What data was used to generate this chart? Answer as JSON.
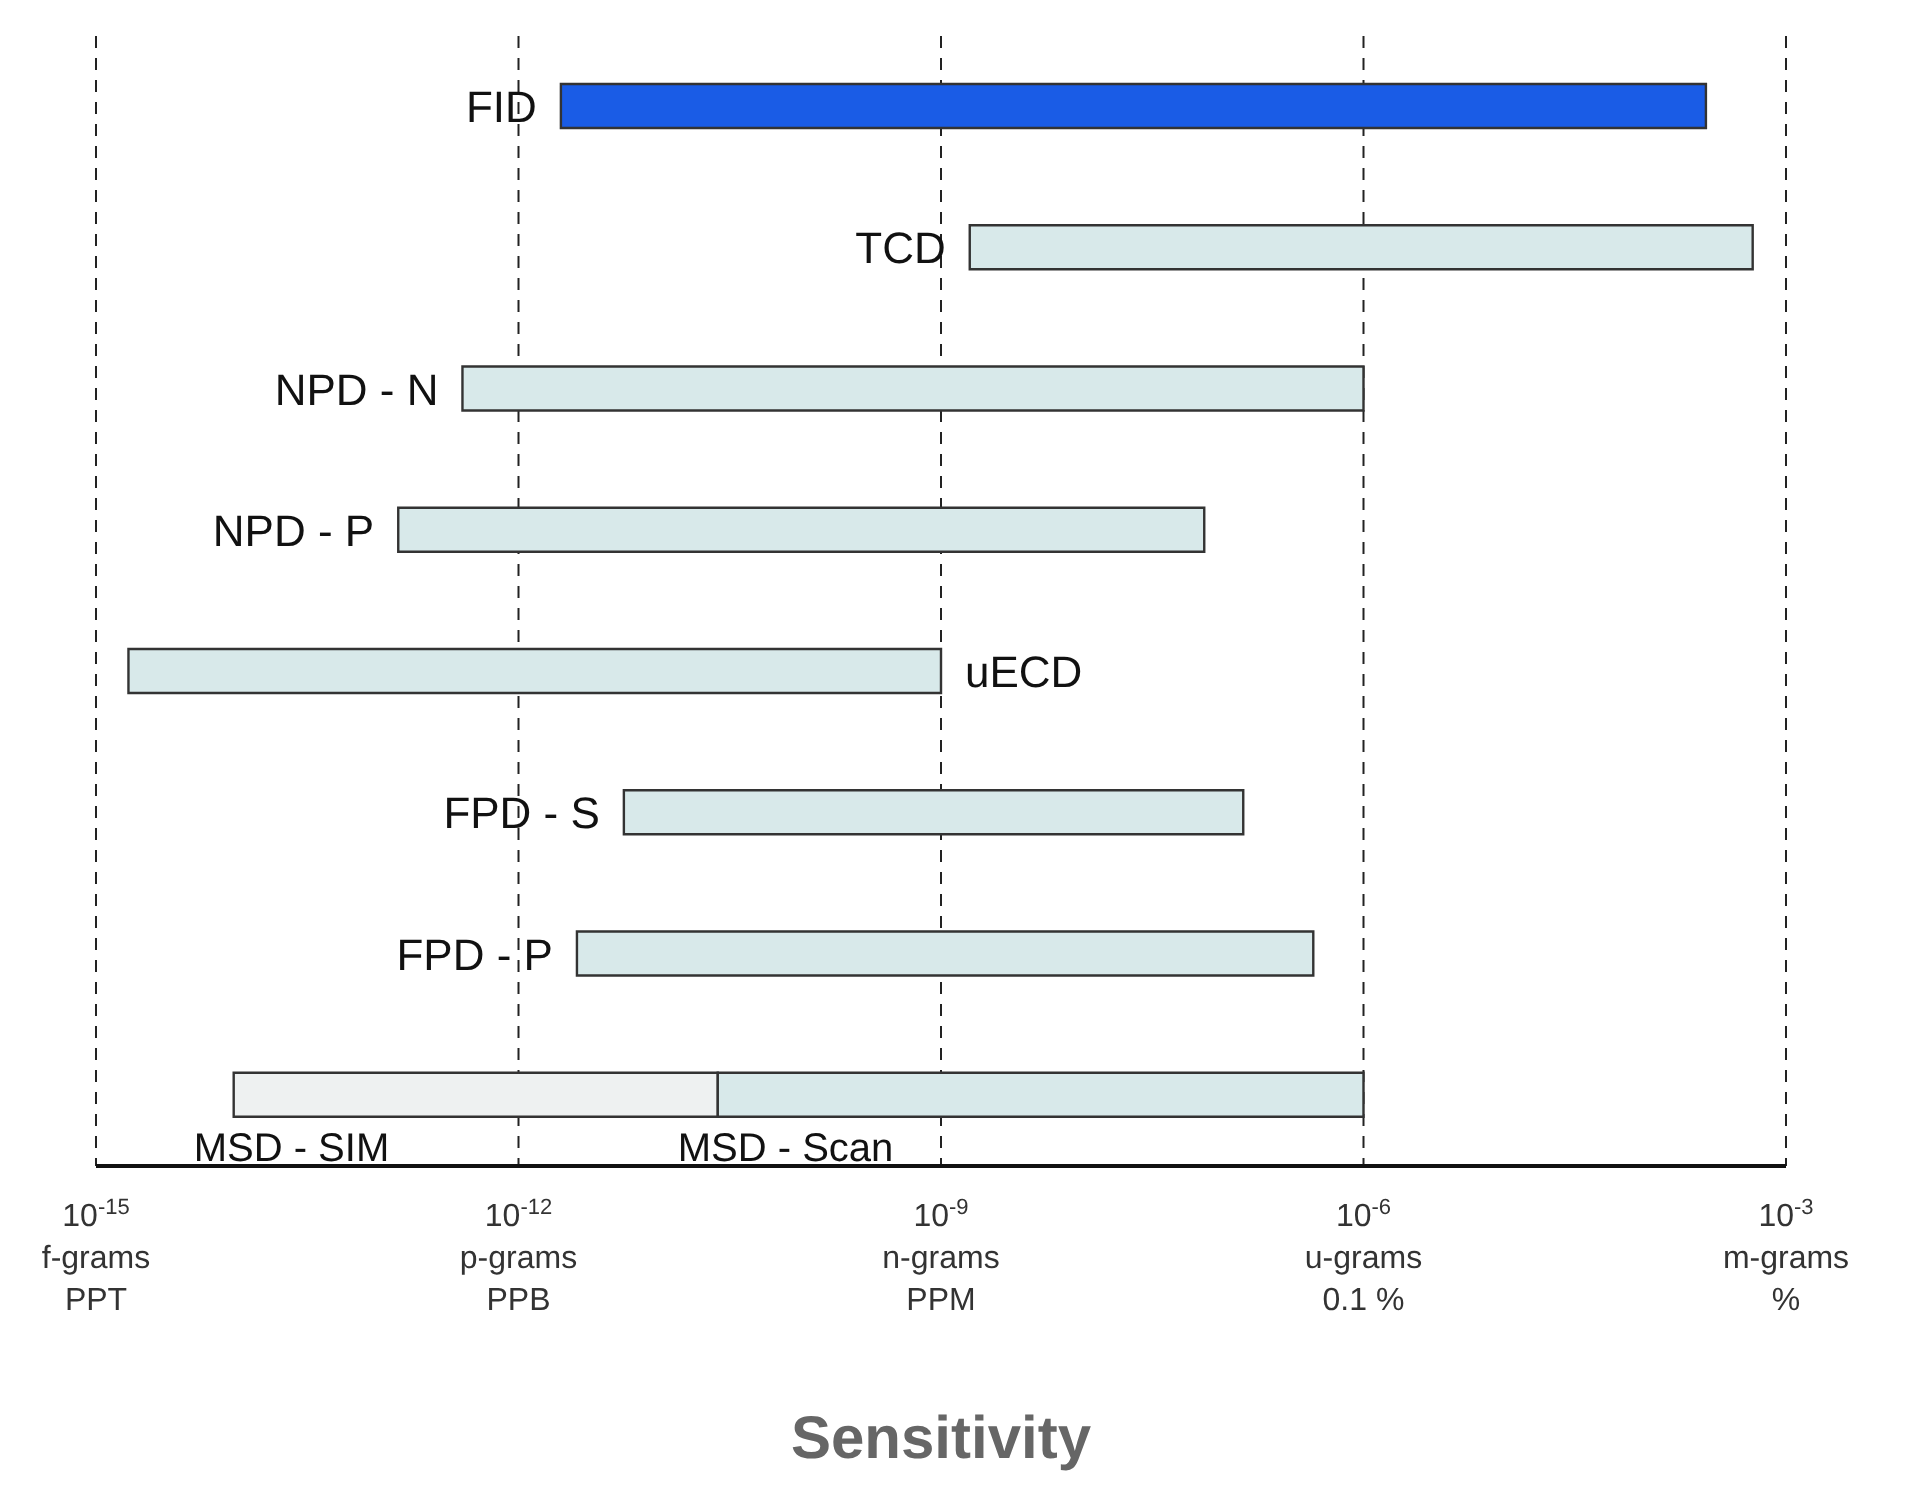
{
  "chart_data": {
    "type": "bar",
    "orientation": "horizontal",
    "log": "x",
    "xlabel": "Sensitivity",
    "categories": [
      "FID",
      "TCD",
      "NPD - N",
      "NPD - P",
      "uECD",
      "FPD - S",
      "FPD - P",
      null
    ],
    "series": [
      {
        "colors": [
          "#1a5ce6",
          "#d8e9ea",
          "#d8e9ea",
          "#d8e9ea",
          "#d8e9ea",
          "#d8e9ea",
          "#d8e9ea",
          null
        ],
        "base": [
          2e-12,
          1.6e-09,
          4e-13,
          1.4e-13,
          1.7e-15,
          5.6e-12,
          2.6e-12,
          null
        ],
        "values": [
          0.00027,
          0.00058,
          1e-06,
          7.4e-08,
          1e-09,
          1.4e-07,
          4.4e-07,
          null
        ]
      },
      {
        "name": "MSD - SIM",
        "color": "#eef1f1",
        "base": [
          null,
          null,
          null,
          null,
          null,
          null,
          null,
          9.5e-15
        ],
        "values": [
          null,
          null,
          null,
          null,
          null,
          null,
          null,
          2.6e-11
        ]
      },
      {
        "name": "MSD - Scan",
        "color": "#d8e9ea",
        "base": [
          null,
          null,
          null,
          null,
          null,
          null,
          null,
          2.6e-11
        ],
        "values": [
          null,
          null,
          null,
          null,
          null,
          null,
          null,
          1e-06
        ]
      }
    ],
    "xlim": [
      1e-15,
      0.001
    ],
    "xticks": [
      {
        "value": 1e-15,
        "label": "10$^{-15}$"
      },
      {
        "value": 1e-12,
        "label": "10$^{-12}$"
      },
      {
        "value": 1e-09,
        "label": "10$^{-9}$"
      },
      {
        "value": 1e-06,
        "label": "10$^{-6}$"
      },
      {
        "value": 0.001,
        "label": "10$^{-3}$"
      }
    ],
    "annotations": [
      "f-grams\nPPT",
      "p-grams\nPPB",
      "n-grams\nPPM",
      "u-grams\n0.1 %",
      "m-grams\n%"
    ],
    "grid": "x"
  }
}
